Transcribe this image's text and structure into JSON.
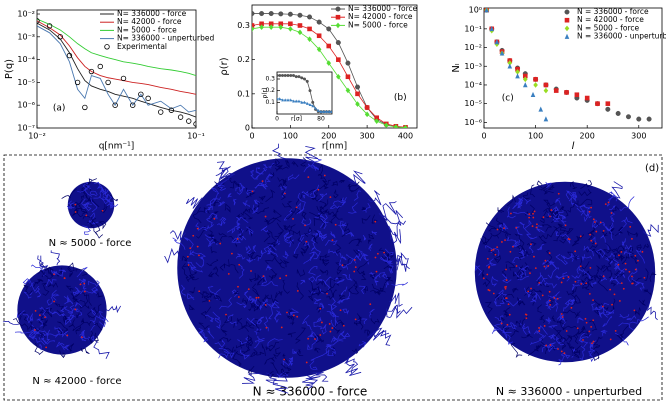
{
  "chart_data": [
    {
      "type": "line",
      "xlabel": "q[nm⁻¹]",
      "ylabel": "P(q)",
      "annotation": "(a)",
      "xlog": true,
      "ylog": true,
      "xlim": [
        0.01,
        0.1
      ],
      "ylim": [
        1e-07,
        0.015
      ],
      "xticks": [
        {
          "value": 0.01,
          "label": "10⁻²"
        },
        {
          "value": 0.1,
          "label": "10⁻¹"
        }
      ],
      "yticks": [
        {
          "value": 1e-07,
          "label": "10⁻⁷"
        },
        {
          "value": 1e-06,
          "label": "10⁻⁶"
        },
        {
          "value": 1e-05,
          "label": "10⁻⁵"
        },
        {
          "value": 0.0001,
          "label": "10⁻⁴"
        },
        {
          "value": 0.001,
          "label": "10⁻³"
        },
        {
          "value": 0.01,
          "label": "10⁻²"
        }
      ],
      "legend": "upper right",
      "x": [
        0.01,
        0.012,
        0.014,
        0.016,
        0.018,
        0.02,
        0.022,
        0.025,
        0.028,
        0.031,
        0.035,
        0.04,
        0.045,
        0.05,
        0.06,
        0.07,
        0.08,
        0.09,
        0.1
      ],
      "series": [
        {
          "name": "N= 336000 - force",
          "color": "#222222",
          "line": true,
          "values": [
            0.004,
            0.002,
            0.0008,
            0.0002,
            4e-05,
            1.2e-05,
            7e-06,
            5e-06,
            4e-06,
            3e-06,
            2.5e-06,
            2e-06,
            1.5e-06,
            1.2e-06,
            8e-07,
            6e-07,
            5e-07,
            4e-07,
            3e-07
          ]
        },
        {
          "name": "N= 42000 - force",
          "color": "#cc2222",
          "line": true,
          "values": [
            0.005,
            0.0025,
            0.0012,
            0.0004,
            0.00012,
            5e-05,
            3e-05,
            2e-05,
            1.6e-05,
            1.4e-05,
            1.2e-05,
            1e-05,
            9e-06,
            8e-06,
            6e-06,
            5e-06,
            4e-06,
            3.5e-06,
            3e-06
          ]
        },
        {
          "name": "N= 5000 - force",
          "color": "#33cc33",
          "line": true,
          "values": [
            0.006,
            0.0035,
            0.002,
            0.001,
            0.0005,
            0.0003,
            0.0002,
            0.00015,
            0.00012,
            0.0001,
            8e-05,
            7e-05,
            6e-05,
            5e-05,
            4e-05,
            3.5e-05,
            3e-05,
            2.5e-05,
            2e-05
          ]
        },
        {
          "name": "N= 336000 - unperturbed",
          "color": "#4a78b0",
          "line": true,
          "values": [
            0.003,
            0.0015,
            0.0005,
            8e-05,
            5e-06,
            2e-06,
            2e-05,
            1.5e-05,
            3e-06,
            1e-06,
            5e-06,
            1e-06,
            3e-06,
            1e-06,
            1.5e-06,
            7e-07,
            1e-06,
            5e-07,
            6e-07
          ]
        },
        {
          "name": "Experimental",
          "color": "#000000",
          "line": false,
          "marker": "open-circle",
          "values": [
            0.005,
            0.003,
            0.001,
            0.00015,
            1e-05,
            8e-07,
            3e-05,
            5e-05,
            1e-05,
            1e-06,
            1.5e-05,
            1e-06,
            3e-06,
            2e-06,
            5e-07,
            6e-07,
            3e-07,
            2e-07,
            1.5e-07
          ]
        }
      ]
    },
    {
      "type": "line",
      "xlabel": "r[nm]",
      "ylabel": "ρ(r)",
      "annotation": "(b)",
      "xlim": [
        0,
        430
      ],
      "ylim": [
        0,
        0.36
      ],
      "xticks": [
        0,
        100,
        200,
        300,
        400
      ],
      "yticks": [
        0,
        0.1,
        0.2,
        0.3
      ],
      "legend": "upper right",
      "x": [
        0,
        25,
        50,
        75,
        100,
        125,
        150,
        175,
        200,
        225,
        250,
        275,
        300,
        325,
        350,
        375,
        400
      ],
      "series": [
        {
          "name": "N= 336000 - force",
          "color": "#555555",
          "line": true,
          "marker": "circle",
          "values": [
            0.335,
            0.335,
            0.335,
            0.334,
            0.333,
            0.33,
            0.325,
            0.31,
            0.29,
            0.25,
            0.19,
            0.12,
            0.06,
            0.025,
            0.01,
            0.003,
            0.001
          ]
        },
        {
          "name": "N= 42000 - force",
          "color": "#dd2222",
          "line": true,
          "marker": "square",
          "values": [
            0.3,
            0.305,
            0.305,
            0.305,
            0.305,
            0.3,
            0.29,
            0.27,
            0.24,
            0.2,
            0.15,
            0.1,
            0.06,
            0.03,
            0.012,
            0.005,
            0.002
          ]
        },
        {
          "name": "N= 5000 - force",
          "color": "#55dd33",
          "line": true,
          "marker": "diamond",
          "values": [
            0.29,
            0.295,
            0.295,
            0.295,
            0.29,
            0.28,
            0.26,
            0.23,
            0.19,
            0.15,
            0.11,
            0.07,
            0.04,
            0.02,
            0.008,
            0.003,
            0.001
          ]
        }
      ]
    },
    {
      "type": "line",
      "xlabel": "r[σ]",
      "ylabel": "ρ(r)",
      "xlim": [
        0,
        100
      ],
      "ylim": [
        0,
        0.36
      ],
      "xticks": [
        0,
        80
      ],
      "yticks": [
        0.1,
        0.2,
        0.3
      ],
      "x": [
        0,
        5,
        10,
        15,
        20,
        25,
        30,
        35,
        40,
        45,
        50,
        55,
        60,
        65,
        70,
        75,
        80,
        85,
        90,
        95,
        100
      ],
      "series": [
        {
          "color": "#555555",
          "line": true,
          "marker": "circle",
          "values": [
            0.33,
            0.33,
            0.33,
            0.33,
            0.33,
            0.33,
            0.33,
            0.32,
            0.32,
            0.31,
            0.3,
            0.28,
            0.2,
            0.1,
            0.04,
            0.02,
            0.02,
            0.02,
            0.02,
            0.02,
            0.02
          ]
        },
        {
          "color": "#3a7fc0",
          "line": true,
          "marker": "triangle",
          "values": [
            0.13,
            0.13,
            0.12,
            0.12,
            0.12,
            0.12,
            0.11,
            0.11,
            0.11,
            0.1,
            0.1,
            0.09,
            0.08,
            0.07,
            0.05,
            0.03,
            0.02,
            0.02,
            0.02,
            0.02,
            0.02
          ]
        }
      ]
    },
    {
      "type": "scatter",
      "xlabel": "l",
      "ylabel": "Nₗ",
      "annotation": "(c)",
      "ylog": true,
      "xlim": [
        0,
        345
      ],
      "ylim": [
        5e-07,
        1.3
      ],
      "xticks": [
        0,
        100,
        200,
        300
      ],
      "yticks": [
        {
          "value": 1e-06,
          "label": "10⁻⁶"
        },
        {
          "value": 1e-05,
          "label": "10⁻⁵"
        },
        {
          "value": 0.0001,
          "label": "10⁻⁴"
        },
        {
          "value": 0.001,
          "label": "10⁻³"
        },
        {
          "value": 0.01,
          "label": "10⁻²"
        },
        {
          "value": 0.1,
          "label": "10⁻¹"
        },
        {
          "value": 1,
          "label": "10⁰"
        }
      ],
      "legend": "upper right",
      "series": [
        {
          "name": "N = 336000 - force",
          "color": "#555555",
          "marker": "circle",
          "x": [
            5,
            15,
            25,
            35,
            50,
            65,
            80,
            100,
            120,
            140,
            160,
            180,
            200,
            220,
            240,
            260,
            280,
            300,
            320
          ],
          "values": [
            1,
            0.1,
            0.02,
            0.007,
            0.002,
            0.0008,
            0.0004,
            0.0002,
            0.0001,
            6e-05,
            4e-05,
            2e-05,
            1.5e-05,
            1e-05,
            5e-06,
            3e-06,
            2e-06,
            1.5e-06,
            1.5e-06
          ]
        },
        {
          "name": "N = 42000 - force",
          "color": "#dd2222",
          "marker": "square",
          "x": [
            5,
            15,
            25,
            35,
            50,
            65,
            80,
            100,
            120,
            140,
            160,
            180,
            200,
            220,
            240
          ],
          "values": [
            1,
            0.1,
            0.02,
            0.006,
            0.002,
            0.0007,
            0.0003,
            0.0002,
            0.0001,
            5e-05,
            4e-05,
            3e-05,
            2e-05,
            1e-05,
            1e-05
          ]
        },
        {
          "name": "N = 5000 - force",
          "color": "#99dd22",
          "marker": "diamond",
          "x": [
            5,
            15,
            25,
            35,
            50,
            65,
            80,
            100,
            120
          ],
          "values": [
            1,
            0.08,
            0.015,
            0.005,
            0.0015,
            0.0005,
            0.0002,
            0.0001,
            5e-05
          ]
        },
        {
          "name": "N = 336000 - unperturbed",
          "color": "#3a7fc0",
          "marker": "triangle",
          "x": [
            5,
            15,
            25,
            35,
            50,
            65,
            80,
            95,
            110,
            120
          ],
          "values": [
            1,
            0.1,
            0.02,
            0.005,
            0.001,
            0.0003,
            0.0001,
            3e-05,
            5e-06,
            1.5e-06
          ]
        }
      ]
    }
  ],
  "illustration": {
    "panel_label": "(d)",
    "labels": [
      "N ≈ 5000 - force",
      "N ≈ 42000 - force",
      "N ≈ 336000 - force",
      "N ≈ 336000 - unperturbed"
    ]
  }
}
